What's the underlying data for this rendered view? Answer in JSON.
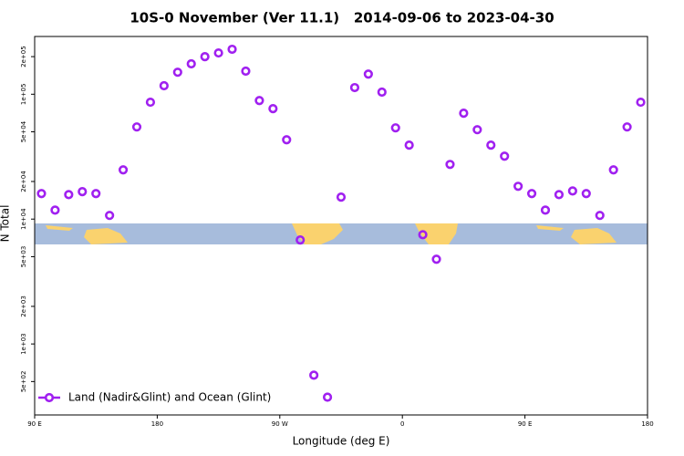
{
  "chart_data": {
    "type": "scatter",
    "title": "10S-0 November (Ver 11.1)   2014-09-06 to 2023-04-30",
    "x_label": "Longitude (deg E)",
    "y_label": "N Total",
    "yscale": "log",
    "xlim": [
      90,
      540
    ],
    "ylim": [
      270,
      290000
    ],
    "xticks": [
      {
        "value": 90,
        "label": "90 E"
      },
      180,
      {
        "value": 270,
        "label": "90 W"
      },
      {
        "value": 360,
        "label": "0"
      },
      {
        "value": 450,
        "label": "90 E"
      },
      {
        "value": 540,
        "label": "180"
      }
    ],
    "yticks": [
      {
        "value": 500,
        "label": "5e+02"
      },
      {
        "value": 1000,
        "label": "1e+03"
      },
      {
        "value": 2000,
        "label": "2e+03"
      },
      {
        "value": 5000,
        "label": "5e+03"
      },
      {
        "value": 10000,
        "label": "1e+04"
      },
      {
        "value": 20000,
        "label": "2e+04"
      },
      {
        "value": 50000,
        "label": "5e+04"
      },
      {
        "value": 100000,
        "label": "1e+05"
      },
      {
        "value": 200000,
        "label": "2e+05"
      }
    ],
    "legend": "bottom-left",
    "x": [
      95,
      105,
      115,
      125,
      135,
      145,
      155,
      165,
      175,
      185,
      195,
      205,
      215,
      225,
      235,
      245,
      255,
      265,
      275,
      285,
      295,
      305,
      315,
      325,
      335,
      345,
      355,
      365,
      375,
      385,
      395,
      405,
      415,
      425,
      435,
      445,
      455,
      465,
      475,
      485,
      495,
      505,
      515,
      525,
      535
    ],
    "series": [
      {
        "name": "Land (Nadir&Glint) and Ocean (Glint)",
        "color": "#a020f0",
        "values": [
          16000,
          11800,
          15700,
          16600,
          16000,
          10700,
          24800,
          54700,
          86300,
          117000,
          150000,
          175000,
          200000,
          214000,
          229000,
          153000,
          89000,
          76600,
          43200,
          6800,
          562,
          375,
          15000,
          113000,
          145000,
          104000,
          53800,
          39100,
          7500,
          4770,
          27400,
          70500,
          52000,
          39100,
          31900,
          18300,
          16000,
          11800,
          15700,
          16800,
          16000,
          10700,
          24800,
          54700,
          86300
        ]
      }
    ]
  }
}
